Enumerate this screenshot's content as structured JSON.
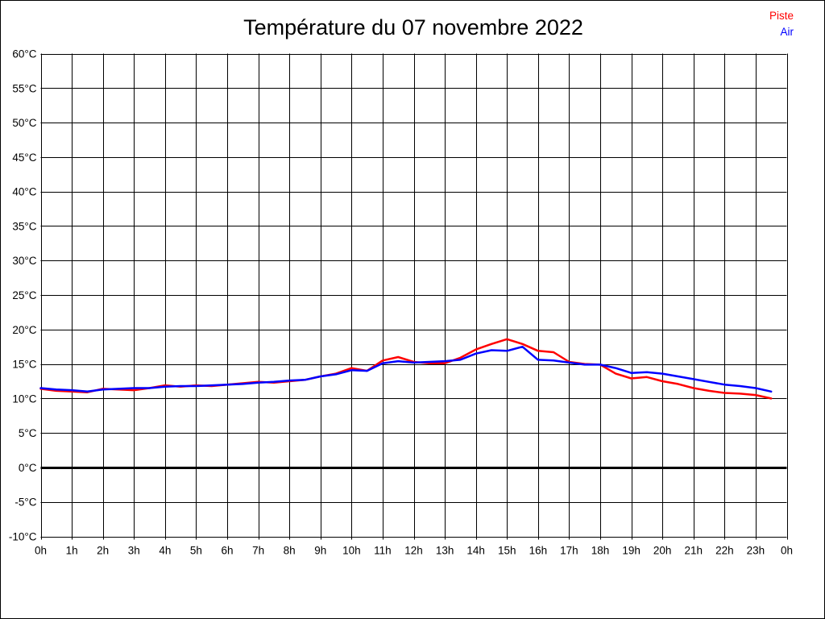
{
  "title": "Température du 07 novembre 2022",
  "legend": {
    "position": "top-right",
    "items": [
      {
        "label": "Piste",
        "color": "#ff0000"
      },
      {
        "label": "Air",
        "color": "#0000ff"
      }
    ]
  },
  "colors": {
    "background": "#ffffff",
    "grid": "#000000",
    "text": "#000000",
    "zero_line": "#000000",
    "piste": "#ff0000",
    "air": "#0000ff"
  },
  "chart_data": {
    "type": "line",
    "title": "Température du 07 novembre 2022",
    "xlabel": "",
    "ylabel": "",
    "xlim": [
      0,
      24
    ],
    "ylim": [
      -10,
      60
    ],
    "y_tick_step": 5,
    "x_tick_step": 1,
    "grid": true,
    "legend_position": "top-right",
    "zero_line": {
      "value": 0,
      "bold": true
    },
    "x_tick_labels": [
      "0h",
      "1h",
      "2h",
      "3h",
      "4h",
      "5h",
      "6h",
      "7h",
      "8h",
      "9h",
      "10h",
      "11h",
      "12h",
      "13h",
      "14h",
      "15h",
      "16h",
      "17h",
      "18h",
      "19h",
      "20h",
      "21h",
      "22h",
      "23h",
      "0h"
    ],
    "y_tick_labels": [
      "60°C",
      "55°C",
      "50°C",
      "45°C",
      "40°C",
      "35°C",
      "30°C",
      "25°C",
      "20°C",
      "15°C",
      "10°C",
      "5°C",
      "0°C",
      "-5°C",
      "-10°C"
    ],
    "x": [
      0,
      0.5,
      1,
      1.5,
      2,
      2.5,
      3,
      3.5,
      4,
      4.5,
      5,
      5.5,
      6,
      6.5,
      7,
      7.5,
      8,
      8.5,
      9,
      9.5,
      10,
      10.5,
      11,
      11.5,
      12,
      12.5,
      13,
      13.5,
      14,
      14.5,
      15,
      15.5,
      16,
      16.5,
      17,
      17.5,
      18,
      18.5,
      19,
      19.5,
      20,
      20.5,
      21,
      21.5,
      22,
      22.5,
      23,
      23.5
    ],
    "series": [
      {
        "name": "Piste",
        "color": "#ff0000",
        "values": [
          11.4,
          11.1,
          11.0,
          10.9,
          11.4,
          11.3,
          11.2,
          11.5,
          11.9,
          11.7,
          11.9,
          11.8,
          12.0,
          12.2,
          12.4,
          12.3,
          12.5,
          12.7,
          13.2,
          13.6,
          14.4,
          14.0,
          15.5,
          16.0,
          15.3,
          15.1,
          15.1,
          15.9,
          17.1,
          17.9,
          18.6,
          17.9,
          16.9,
          16.7,
          15.3,
          15.0,
          14.9,
          13.6,
          12.9,
          13.1,
          12.5,
          12.1,
          11.5,
          11.1,
          10.8,
          10.7,
          10.5,
          10.0
        ]
      },
      {
        "name": "Air",
        "color": "#0000ff",
        "values": [
          11.5,
          11.3,
          11.2,
          11.0,
          11.3,
          11.4,
          11.5,
          11.5,
          11.7,
          11.8,
          11.8,
          11.9,
          12.0,
          12.1,
          12.3,
          12.4,
          12.6,
          12.7,
          13.2,
          13.5,
          14.1,
          14.0,
          15.1,
          15.4,
          15.2,
          15.3,
          15.4,
          15.6,
          16.5,
          17.0,
          16.9,
          17.5,
          15.6,
          15.5,
          15.2,
          14.9,
          14.9,
          14.4,
          13.7,
          13.8,
          13.6,
          13.2,
          12.8,
          12.4,
          12.0,
          11.8,
          11.5,
          11.0
        ]
      }
    ]
  }
}
